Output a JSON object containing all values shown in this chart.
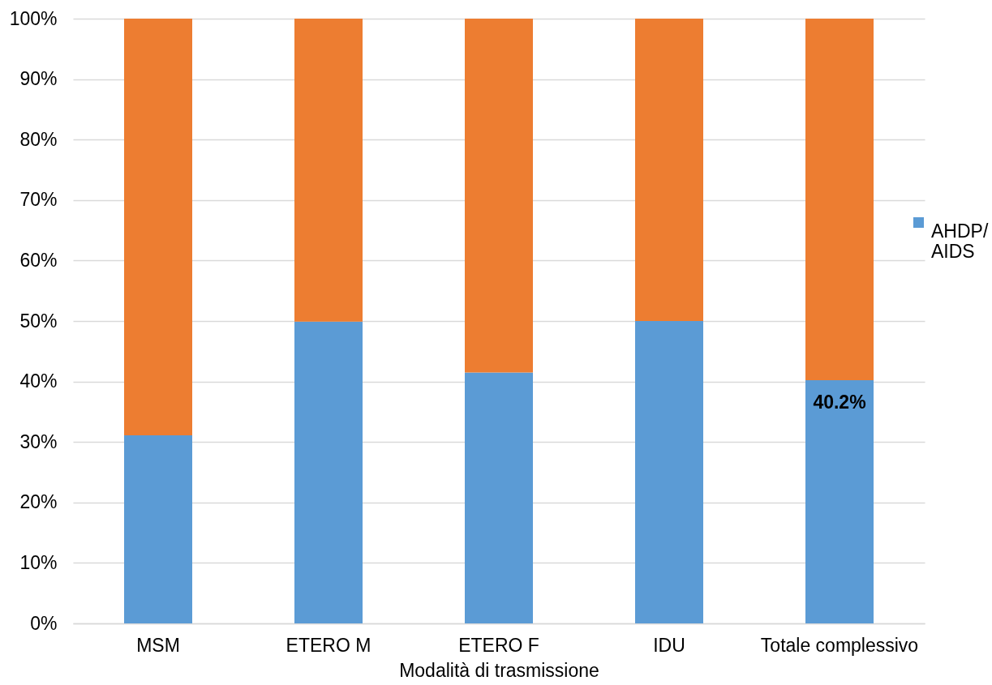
{
  "chart_data": {
    "type": "bar",
    "stacked": true,
    "xlabel": "Modalità di trasmissione",
    "categories": [
      "MSM",
      "ETERO M",
      "ETERO F",
      "IDU",
      "Totale complessivo"
    ],
    "series": [
      {
        "name": "AHDP/AIDS",
        "color": "#5b9bd5",
        "values": [
          31.1,
          49.9,
          41.5,
          50.0,
          40.2
        ],
        "value_labels": [
          null,
          null,
          null,
          null,
          "40.2%"
        ]
      },
      {
        "color": "#ed7d31",
        "values": [
          68.9,
          50.1,
          58.5,
          50.0,
          59.8
        ]
      }
    ],
    "ylim": [
      0,
      100
    ],
    "yticks": [
      {
        "value": 0,
        "label": "0%"
      },
      {
        "value": 10,
        "label": "10%"
      },
      {
        "value": 20,
        "label": "20%"
      },
      {
        "value": 30,
        "label": "30%"
      },
      {
        "value": 40,
        "label": "40%"
      },
      {
        "value": 50,
        "label": "50%"
      },
      {
        "value": 60,
        "label": "60%"
      },
      {
        "value": 70,
        "label": "70%"
      },
      {
        "value": 80,
        "label": "80%"
      },
      {
        "value": 90,
        "label": "90%"
      },
      {
        "value": 100,
        "label": "100%"
      }
    ],
    "grid": "y",
    "legend": "right"
  }
}
